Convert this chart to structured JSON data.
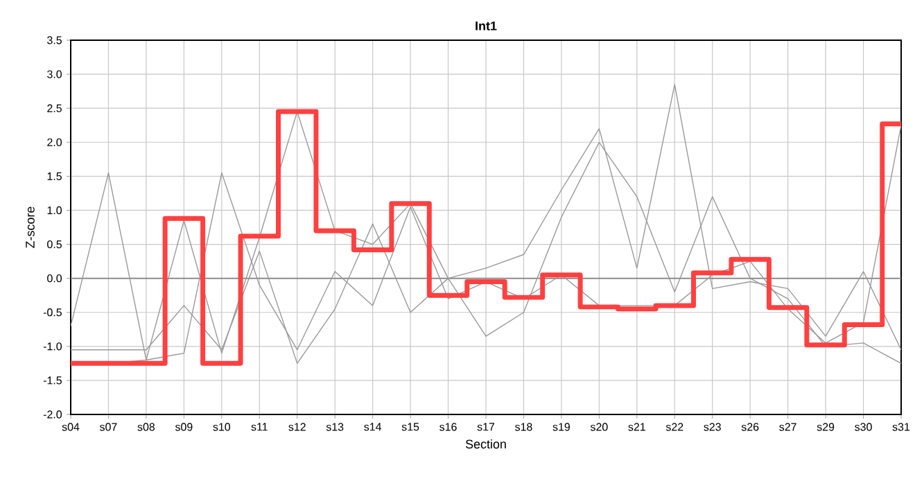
{
  "chart_data": {
    "type": "line",
    "title": "Int1",
    "xlabel": "Section",
    "ylabel": "Z-score",
    "categories": [
      "s04",
      "s07",
      "s08",
      "s09",
      "s10",
      "s11",
      "s12",
      "s13",
      "s14",
      "s15",
      "s16",
      "s17",
      "s18",
      "s19",
      "s20",
      "s21",
      "s22",
      "s23",
      "s26",
      "s27",
      "s29",
      "s30",
      "s31"
    ],
    "series": [
      {
        "color": "#999999",
        "values": [
          -0.7,
          1.55,
          -1.2,
          0.85,
          -1.1,
          0.6,
          2.45,
          0.7,
          0.5,
          1.1,
          0.0,
          -0.85,
          -0.5,
          0.9,
          2.0,
          1.2,
          -0.2,
          1.2,
          0.0,
          -0.3,
          -1.0,
          -0.95,
          -1.25
        ]
      },
      {
        "color": "#999999",
        "values": [
          -1.05,
          -1.05,
          -1.05,
          -0.4,
          -1.05,
          0.4,
          -1.25,
          -0.45,
          0.8,
          -0.5,
          0.0,
          0.15,
          0.35,
          1.3,
          2.2,
          0.15,
          2.85,
          -0.15,
          -0.05,
          -0.15,
          -0.85,
          0.1,
          -1.05
        ]
      },
      {
        "color": "#999999",
        "values": [
          null,
          -1.25,
          -1.2,
          -1.1,
          1.55,
          -0.1,
          -1.05,
          0.1,
          -0.4,
          1.05,
          -0.3,
          -0.05,
          -0.3,
          0.05,
          -0.4,
          -0.4,
          -0.4,
          0.05,
          0.25,
          -0.45,
          -0.95,
          -0.65,
          2.25
        ]
      },
      {
        "type": "step",
        "color": "#ff4040",
        "values": [
          -1.25,
          -1.25,
          -1.25,
          0.88,
          -1.25,
          0.62,
          2.45,
          0.7,
          0.42,
          1.1,
          -0.25,
          -0.05,
          -0.28,
          0.05,
          -0.42,
          -0.45,
          -0.4,
          0.08,
          0.28,
          -0.43,
          -0.98,
          -0.68,
          2.27
        ]
      }
    ],
    "ylim": [
      -2.0,
      3.5
    ],
    "yticks": [
      {
        "value": -2,
        "label": "-2.0"
      },
      {
        "value": -1.5,
        "label": "-1.5"
      },
      {
        "value": -1,
        "label": "-1.0"
      },
      {
        "value": -0.5,
        "label": "-0.5"
      },
      {
        "value": 0,
        "label": "0.0"
      },
      {
        "value": 0.5,
        "label": "0.5"
      },
      {
        "value": 1,
        "label": "1.0"
      },
      {
        "value": 1.5,
        "label": "1.5"
      },
      {
        "value": 2,
        "label": "2.0"
      },
      {
        "value": 2.5,
        "label": "2.5"
      },
      {
        "value": 3,
        "label": "3.0"
      },
      {
        "value": 3.5,
        "label": "3.5"
      }
    ],
    "ref_lines": [
      {
        "axis": "y",
        "value": 0,
        "color": "#808080"
      }
    ],
    "grid": true,
    "marker": "none",
    "line_style": "solid"
  }
}
